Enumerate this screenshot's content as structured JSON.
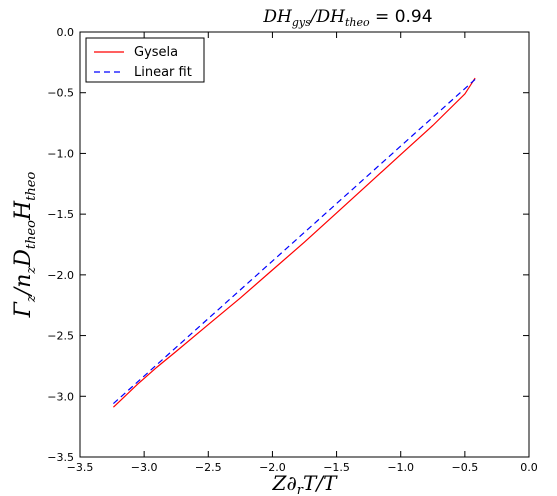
{
  "chart_data": {
    "type": "line",
    "title": "DH_gys/DH_theo = 0.94",
    "title_parts": {
      "lhs": "DH",
      "lhs_sub": "gys",
      "rhs": "DH",
      "rhs_sub": "theo",
      "eq": "= ",
      "value": "0.94"
    },
    "xlabel": "Z∂_r T/T",
    "ylabel": "Γ_z/n_z D_theo H_theo",
    "xlim": [
      -3.5,
      0.0
    ],
    "ylim": [
      -3.5,
      0.0
    ],
    "xticks": [
      -3.5,
      -3.0,
      -2.5,
      -2.0,
      -1.5,
      -1.0,
      -0.5,
      0.0
    ],
    "yticks": [
      -3.5,
      -3.0,
      -2.5,
      -2.0,
      -1.5,
      -1.0,
      -0.5,
      0.0
    ],
    "xtick_labels": [
      "−3.5",
      "−3.0",
      "−2.5",
      "−2.0",
      "−1.5",
      "−1.0",
      "−0.5",
      "0.0"
    ],
    "ytick_labels": [
      "−3.5",
      "−3.0",
      "−2.5",
      "−2.0",
      "−1.5",
      "−1.0",
      "−0.5",
      "0.0"
    ],
    "grid": false,
    "legend_position": "top-left",
    "series": [
      {
        "name": "Gysela",
        "color": "#ff0000",
        "style": "solid",
        "x": [
          -3.24,
          -3.15,
          -3.05,
          -2.9,
          -2.75,
          -2.5,
          -2.25,
          -2.0,
          -1.75,
          -1.5,
          -1.25,
          -1.0,
          -0.75,
          -0.5,
          -0.42
        ],
        "y": [
          -3.09,
          -3.0,
          -2.9,
          -2.76,
          -2.63,
          -2.41,
          -2.19,
          -1.96,
          -1.73,
          -1.49,
          -1.25,
          -1.01,
          -0.77,
          -0.51,
          -0.38
        ]
      },
      {
        "name": "Linear fit",
        "color": "#0000ff",
        "style": "dashed",
        "x": [
          -3.24,
          -0.42
        ],
        "y": [
          -3.06,
          -0.39
        ]
      }
    ]
  }
}
